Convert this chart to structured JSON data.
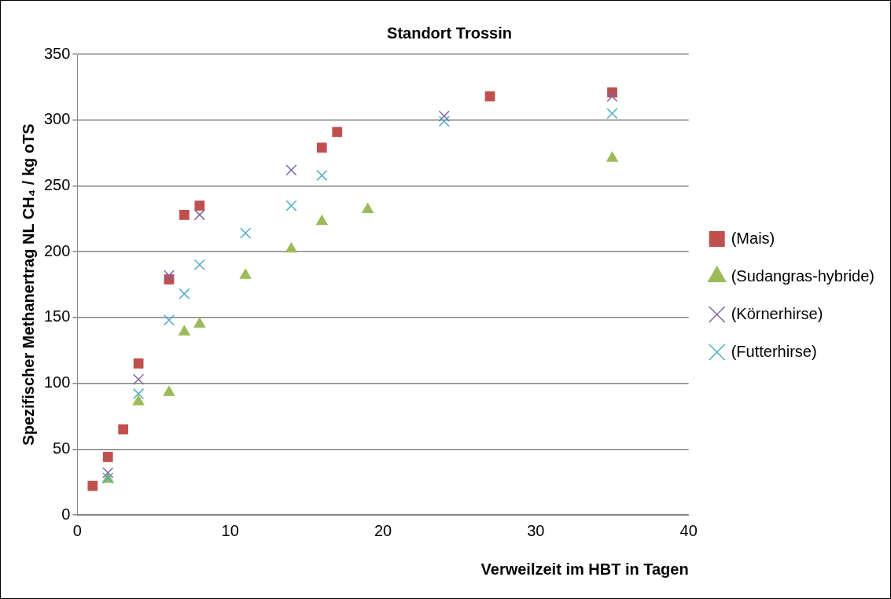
{
  "chart_data": {
    "type": "scatter",
    "title": "Standort Trossin",
    "xlabel": "Verweilzeit im HBT in Tagen",
    "ylabel": "Spezifischer Methanertrag NL CH₄ / kg oTS",
    "xlim": [
      0,
      40
    ],
    "xticks": [
      0,
      10,
      20,
      30,
      40
    ],
    "ylim": [
      0,
      350
    ],
    "yticks": [
      0,
      50,
      100,
      150,
      200,
      250,
      300,
      350
    ],
    "grid": "y",
    "legend": "right",
    "series": [
      {
        "name": "(Mais)",
        "color": "#c0504d",
        "marker": "square",
        "x": [
          1,
          2,
          3,
          4,
          6,
          7,
          8,
          16,
          17,
          27,
          35
        ],
        "values": [
          22,
          44,
          65,
          115,
          179,
          228,
          235,
          279,
          291,
          318,
          321
        ]
      },
      {
        "name": "(Sudangras-hybride)",
        "color": "#9bbb59",
        "marker": "triangle",
        "x": [
          2,
          4,
          6,
          7,
          8,
          11,
          14,
          16,
          19,
          35
        ],
        "values": [
          27,
          86,
          93,
          139,
          145,
          182,
          202,
          223,
          232,
          271
        ]
      },
      {
        "name": "(Körnerhirse)",
        "color": "#8064a2",
        "marker": "cross",
        "x": [
          2,
          4,
          6,
          8,
          14,
          24,
          35
        ],
        "values": [
          32,
          103,
          182,
          228,
          262,
          303,
          318
        ]
      },
      {
        "name": "(Futterhirse)",
        "color": "#4bacc6",
        "marker": "cross",
        "x": [
          2,
          4,
          6,
          7,
          8,
          11,
          14,
          16,
          24,
          35
        ],
        "values": [
          28,
          92,
          148,
          168,
          190,
          214,
          235,
          258,
          299,
          305
        ]
      }
    ]
  }
}
